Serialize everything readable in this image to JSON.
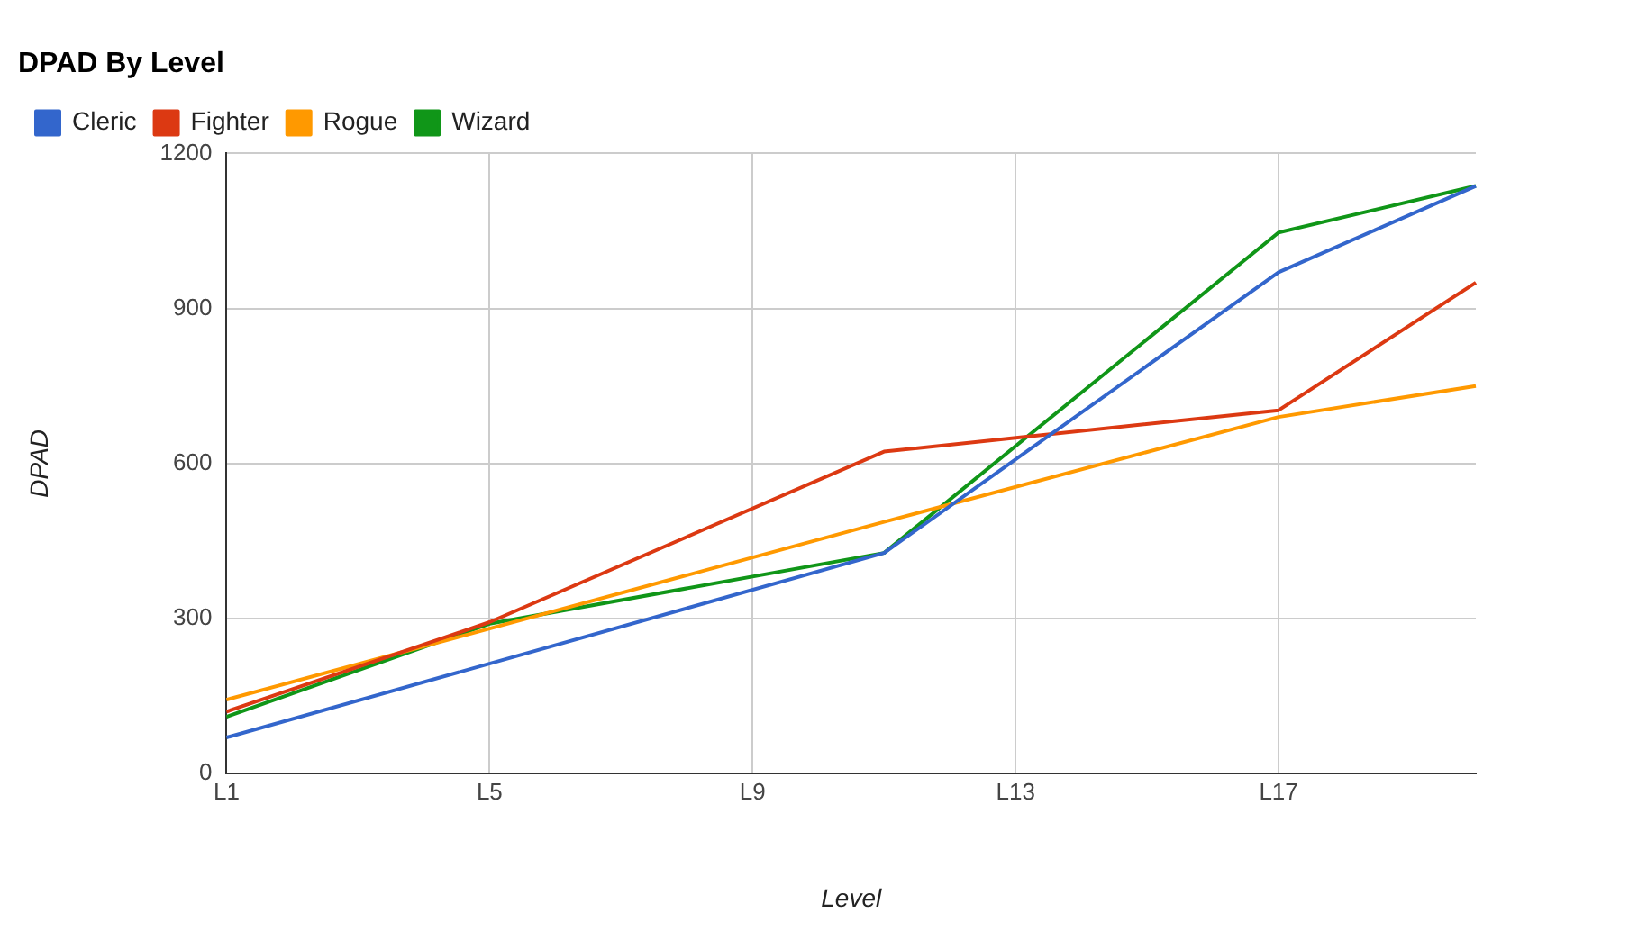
{
  "chart_data": {
    "type": "line",
    "title": "DPAD By Level",
    "xlabel": "Level",
    "ylabel": "DPAD",
    "categories": [
      "L1",
      null,
      null,
      null,
      "L5",
      null,
      null,
      null,
      "L9",
      null,
      null,
      null,
      "L13",
      null,
      null,
      null,
      "L17",
      null,
      null,
      null
    ],
    "ylim": [
      0,
      1200
    ],
    "yticks": [
      0,
      300,
      600,
      900,
      1200
    ],
    "series": [
      {
        "name": "Cleric",
        "color": "#3366cc",
        "values": [
          70,
          null,
          null,
          null,
          null,
          null,
          null,
          null,
          null,
          null,
          427,
          null,
          null,
          null,
          null,
          null,
          970,
          null,
          null,
          1137
        ]
      },
      {
        "name": "Fighter",
        "color": "#dc3912",
        "values": [
          120,
          null,
          null,
          null,
          293,
          null,
          null,
          null,
          null,
          null,
          623,
          null,
          null,
          null,
          null,
          null,
          703,
          null,
          null,
          950
        ]
      },
      {
        "name": "Rogue",
        "color": "#ff9900",
        "values": [
          143,
          null,
          null,
          null,
          null,
          null,
          null,
          null,
          null,
          null,
          487,
          null,
          null,
          null,
          null,
          null,
          690,
          null,
          null,
          750
        ]
      },
      {
        "name": "Wizard",
        "color": "#109618",
        "values": [
          110,
          null,
          null,
          null,
          290,
          null,
          null,
          null,
          null,
          null,
          427,
          null,
          null,
          null,
          null,
          null,
          1047,
          null,
          null,
          1137
        ]
      }
    ],
    "grid": true,
    "legend": "top left",
    "marker": "none",
    "line_style": "solid"
  }
}
